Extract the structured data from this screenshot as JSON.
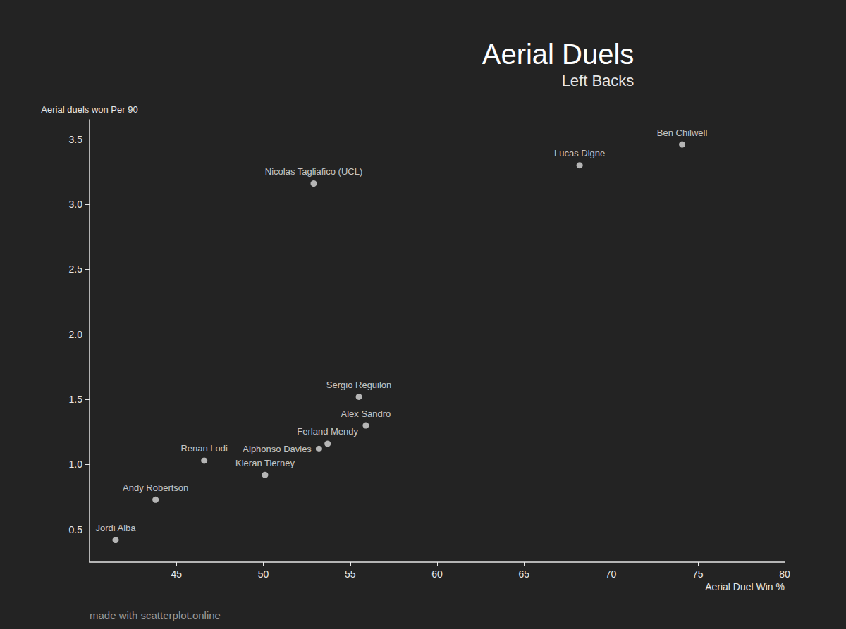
{
  "chart_data": {
    "type": "scatter",
    "title": "Aerial Duels",
    "subtitle": "Left Backs",
    "x_label": "Aerial Duel Win %",
    "y_label": "Aerial duels won Per 90",
    "footer": "made with scatterplot.online",
    "labels": [
      "Jordi Alba",
      "Andy Robertson",
      "Renan Lodi",
      "Kieran Tierney",
      "Alphonso Davies",
      "Ferland Mendy",
      "Alex Sandro",
      "Sergio Reguilon",
      "Nicolas Tagliafico (UCL)",
      "Lucas Digne",
      "Ben Chilwell"
    ],
    "x": [
      41.5,
      43.8,
      46.6,
      50.1,
      53.2,
      53.7,
      55.9,
      55.5,
      52.9,
      68.2,
      74.1
    ],
    "values": [
      0.42,
      0.73,
      1.03,
      0.92,
      1.12,
      1.16,
      1.3,
      1.52,
      3.16,
      3.3,
      3.46
    ],
    "color": "#d9d9d9",
    "xlim": [
      40,
      80
    ],
    "xticks": [
      45,
      50,
      55,
      60,
      65,
      70,
      75,
      80
    ],
    "ylim": [
      0.25,
      3.65
    ],
    "yticks": [
      0.5,
      {
        "value": 1,
        "label": "1.0"
      },
      1.5,
      {
        "value": 2,
        "label": "2.0"
      },
      2.5,
      {
        "value": 3,
        "label": "3.0"
      },
      3.5
    ],
    "grid": false
  }
}
